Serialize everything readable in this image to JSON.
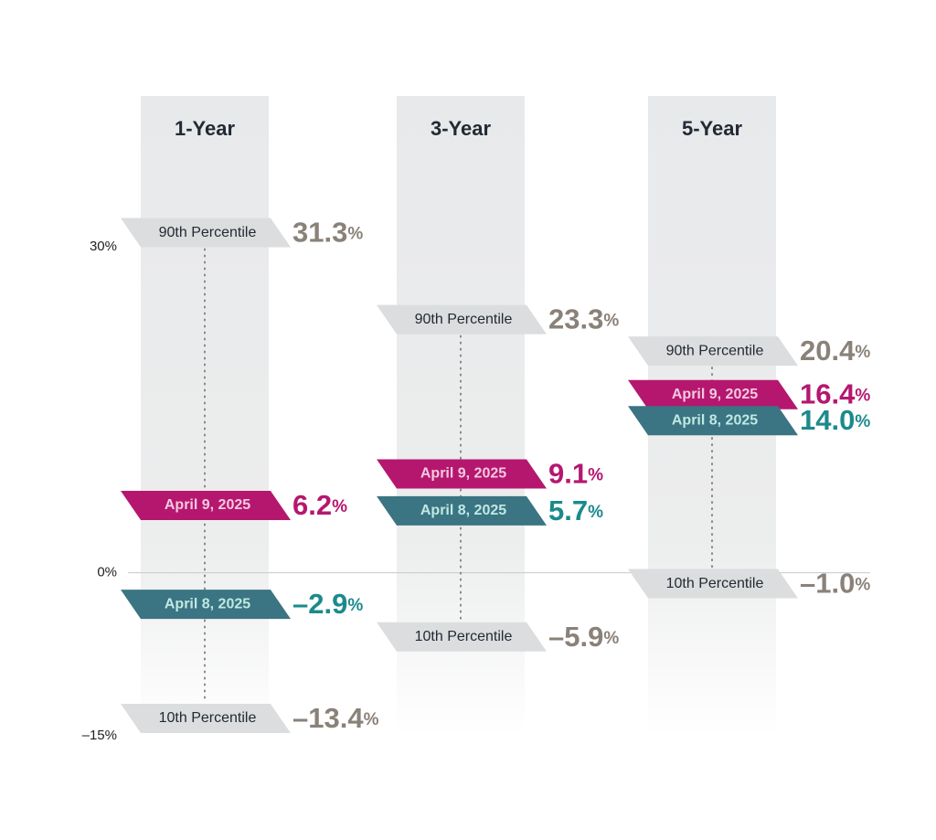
{
  "chart_data": {
    "type": "range-markers",
    "categories": [
      "1-Year",
      "3-Year",
      "5-Year"
    ],
    "series": [
      {
        "name": "90th Percentile",
        "color": "#dcdddf",
        "text_color": "#222a33",
        "value_color": "#8a8178",
        "values": [
          31.3,
          23.3,
          20.4
        ],
        "value_labels": [
          "31.3%",
          "23.3%",
          "20.4%"
        ]
      },
      {
        "name": "April 9, 2025",
        "color": "#b5176f",
        "text_color": "#f4c9e0",
        "value_color": "#b5176f",
        "values": [
          6.2,
          9.1,
          16.4
        ],
        "value_labels": [
          "6.2%",
          "9.1%",
          "16.4%"
        ]
      },
      {
        "name": "April 8, 2025",
        "color": "#3b7482",
        "text_color": "#bfe9e3",
        "value_color": "#1b8a8c",
        "values": [
          -2.9,
          5.7,
          14.0
        ],
        "value_labels": [
          "–2.9%",
          "5.7%",
          "14.0%"
        ]
      },
      {
        "name": "10th Percentile",
        "color": "#dcdddf",
        "text_color": "#222a33",
        "value_color": "#8a8178",
        "values": [
          -13.4,
          -5.9,
          -1.0
        ],
        "value_labels": [
          "–13.4%",
          "–5.9%",
          "–1.0%"
        ]
      }
    ],
    "ylim": [
      -15,
      30
    ],
    "yticks": [
      {
        "value": 30,
        "label": "30%"
      },
      {
        "value": 0,
        "label": "0%"
      },
      {
        "value": -15,
        "label": "–15%"
      }
    ]
  }
}
